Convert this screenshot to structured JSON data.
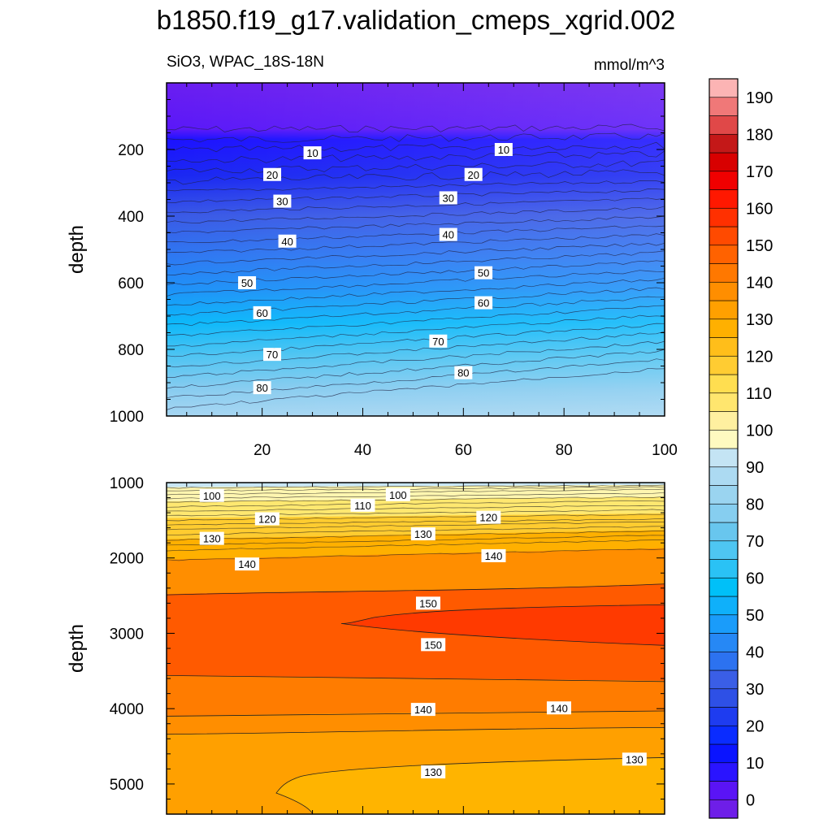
{
  "title": "b1850.f19_g17.validation_cmeps_xgrid.002",
  "subtitle_left": "SiO3, WPAC_18S-18N",
  "subtitle_right": "mmol/m^3",
  "chart_data": [
    {
      "type": "heatmap",
      "panel": "upper",
      "ylabel": "depth",
      "xlim": [
        1,
        100
      ],
      "ylim": [
        1000,
        0
      ],
      "x_ticks": [
        "20",
        "40",
        "60",
        "80",
        "100"
      ],
      "y_ticks": [
        "200",
        "400",
        "600",
        "800",
        "1000"
      ],
      "contour_interval": 5,
      "contour_labels": [
        {
          "value": "10",
          "x": 30,
          "depth": 210
        },
        {
          "value": "10",
          "x": 68,
          "depth": 200
        },
        {
          "value": "20",
          "x": 22,
          "depth": 275
        },
        {
          "value": "20",
          "x": 62,
          "depth": 275
        },
        {
          "value": "30",
          "x": 24,
          "depth": 355
        },
        {
          "value": "30",
          "x": 57,
          "depth": 345
        },
        {
          "value": "40",
          "x": 25,
          "depth": 475
        },
        {
          "value": "40",
          "x": 57,
          "depth": 455
        },
        {
          "value": "50",
          "x": 17,
          "depth": 600
        },
        {
          "value": "50",
          "x": 64,
          "depth": 570
        },
        {
          "value": "60",
          "x": 20,
          "depth": 690
        },
        {
          "value": "60",
          "x": 64,
          "depth": 660
        },
        {
          "value": "70",
          "x": 22,
          "depth": 815
        },
        {
          "value": "70",
          "x": 55,
          "depth": 775
        },
        {
          "value": "80",
          "x": 20,
          "depth": 915
        },
        {
          "value": "80",
          "x": 60,
          "depth": 870
        }
      ]
    },
    {
      "type": "heatmap",
      "panel": "lower",
      "ylabel": "depth",
      "xlim": [
        1,
        100
      ],
      "ylim": [
        5400,
        1000
      ],
      "y_ticks": [
        "1000",
        "2000",
        "3000",
        "4000",
        "5000"
      ],
      "contour_interval": 5,
      "contour_labels": [
        {
          "value": "100",
          "x": 10,
          "depth": 1170
        },
        {
          "value": "110",
          "x": 40,
          "depth": 1300
        },
        {
          "value": "100",
          "x": 47,
          "depth": 1160
        },
        {
          "value": "120",
          "x": 21,
          "depth": 1480
        },
        {
          "value": "120",
          "x": 65,
          "depth": 1460
        },
        {
          "value": "130",
          "x": 10,
          "depth": 1740
        },
        {
          "value": "130",
          "x": 52,
          "depth": 1680
        },
        {
          "value": "140",
          "x": 17,
          "depth": 2080
        },
        {
          "value": "140",
          "x": 66,
          "depth": 1970
        },
        {
          "value": "150",
          "x": 53,
          "depth": 2600
        },
        {
          "value": "150",
          "x": 54,
          "depth": 3150
        },
        {
          "value": "140",
          "x": 52,
          "depth": 4010
        },
        {
          "value": "140",
          "x": 79,
          "depth": 3990
        },
        {
          "value": "130",
          "x": 54,
          "depth": 4840
        },
        {
          "value": "130",
          "x": 94,
          "depth": 4670
        }
      ]
    }
  ],
  "colorbar": {
    "labels": [
      "0",
      "10",
      "20",
      "30",
      "40",
      "50",
      "60",
      "70",
      "80",
      "90",
      "100",
      "110",
      "120",
      "130",
      "140",
      "150",
      "160",
      "170",
      "180",
      "190"
    ],
    "colors": [
      "#6e1ee8",
      "#5a14f5",
      "#2a14ff",
      "#0a14ff",
      "#0a2cff",
      "#1e3cf0",
      "#2e50e6",
      "#3a5ee6",
      "#2c72f0",
      "#2688f5",
      "#1a9cfa",
      "#0fb0fa",
      "#00c0f8",
      "#2ac2f5",
      "#4ec6f2",
      "#68c6ee",
      "#86cef0",
      "#9ad4f0",
      "#acdaf2",
      "#c4e4f4",
      "#fefac0",
      "#fff0a0",
      "#ffe66e",
      "#ffde50",
      "#ffcc32",
      "#ffbe1a",
      "#ffb000",
      "#ffa000",
      "#ff8e00",
      "#ff7800",
      "#ff6200",
      "#ff4a00",
      "#ff3000",
      "#ff1800",
      "#f00000",
      "#d80000",
      "#c41818",
      "#e04848",
      "#f07878",
      "#fcb4b4"
    ]
  }
}
